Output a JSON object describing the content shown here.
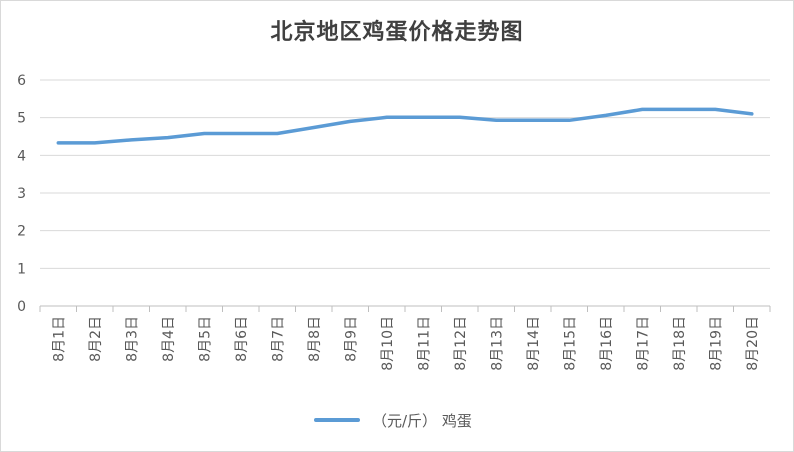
{
  "chart_data": {
    "type": "line",
    "title": "北京地区鸡蛋价格走势图",
    "categories": [
      "8月1日",
      "8月2日",
      "8月3日",
      "8月4日",
      "8月5日",
      "8月6日",
      "8月7日",
      "8月8日",
      "8月9日",
      "8月10日",
      "8月11日",
      "8月12日",
      "8月13日",
      "8月14日",
      "8月15日",
      "8月16日",
      "8月17日",
      "8月18日",
      "8月19日",
      "8月20日"
    ],
    "series": [
      {
        "name": "（元/斤） 鸡蛋",
        "values": [
          4.33,
          4.33,
          4.41,
          4.47,
          4.58,
          4.58,
          4.58,
          4.74,
          4.9,
          5.01,
          5.01,
          5.01,
          4.93,
          4.93,
          4.93,
          5.06,
          5.22,
          5.22,
          5.22,
          5.1
        ],
        "color": "#5b9bd5"
      }
    ],
    "ylim": [
      0,
      6
    ],
    "yticks": [
      "0",
      "1",
      "2",
      "3",
      "4",
      "5",
      "6"
    ],
    "grid": true,
    "legend_position": "bottom"
  }
}
